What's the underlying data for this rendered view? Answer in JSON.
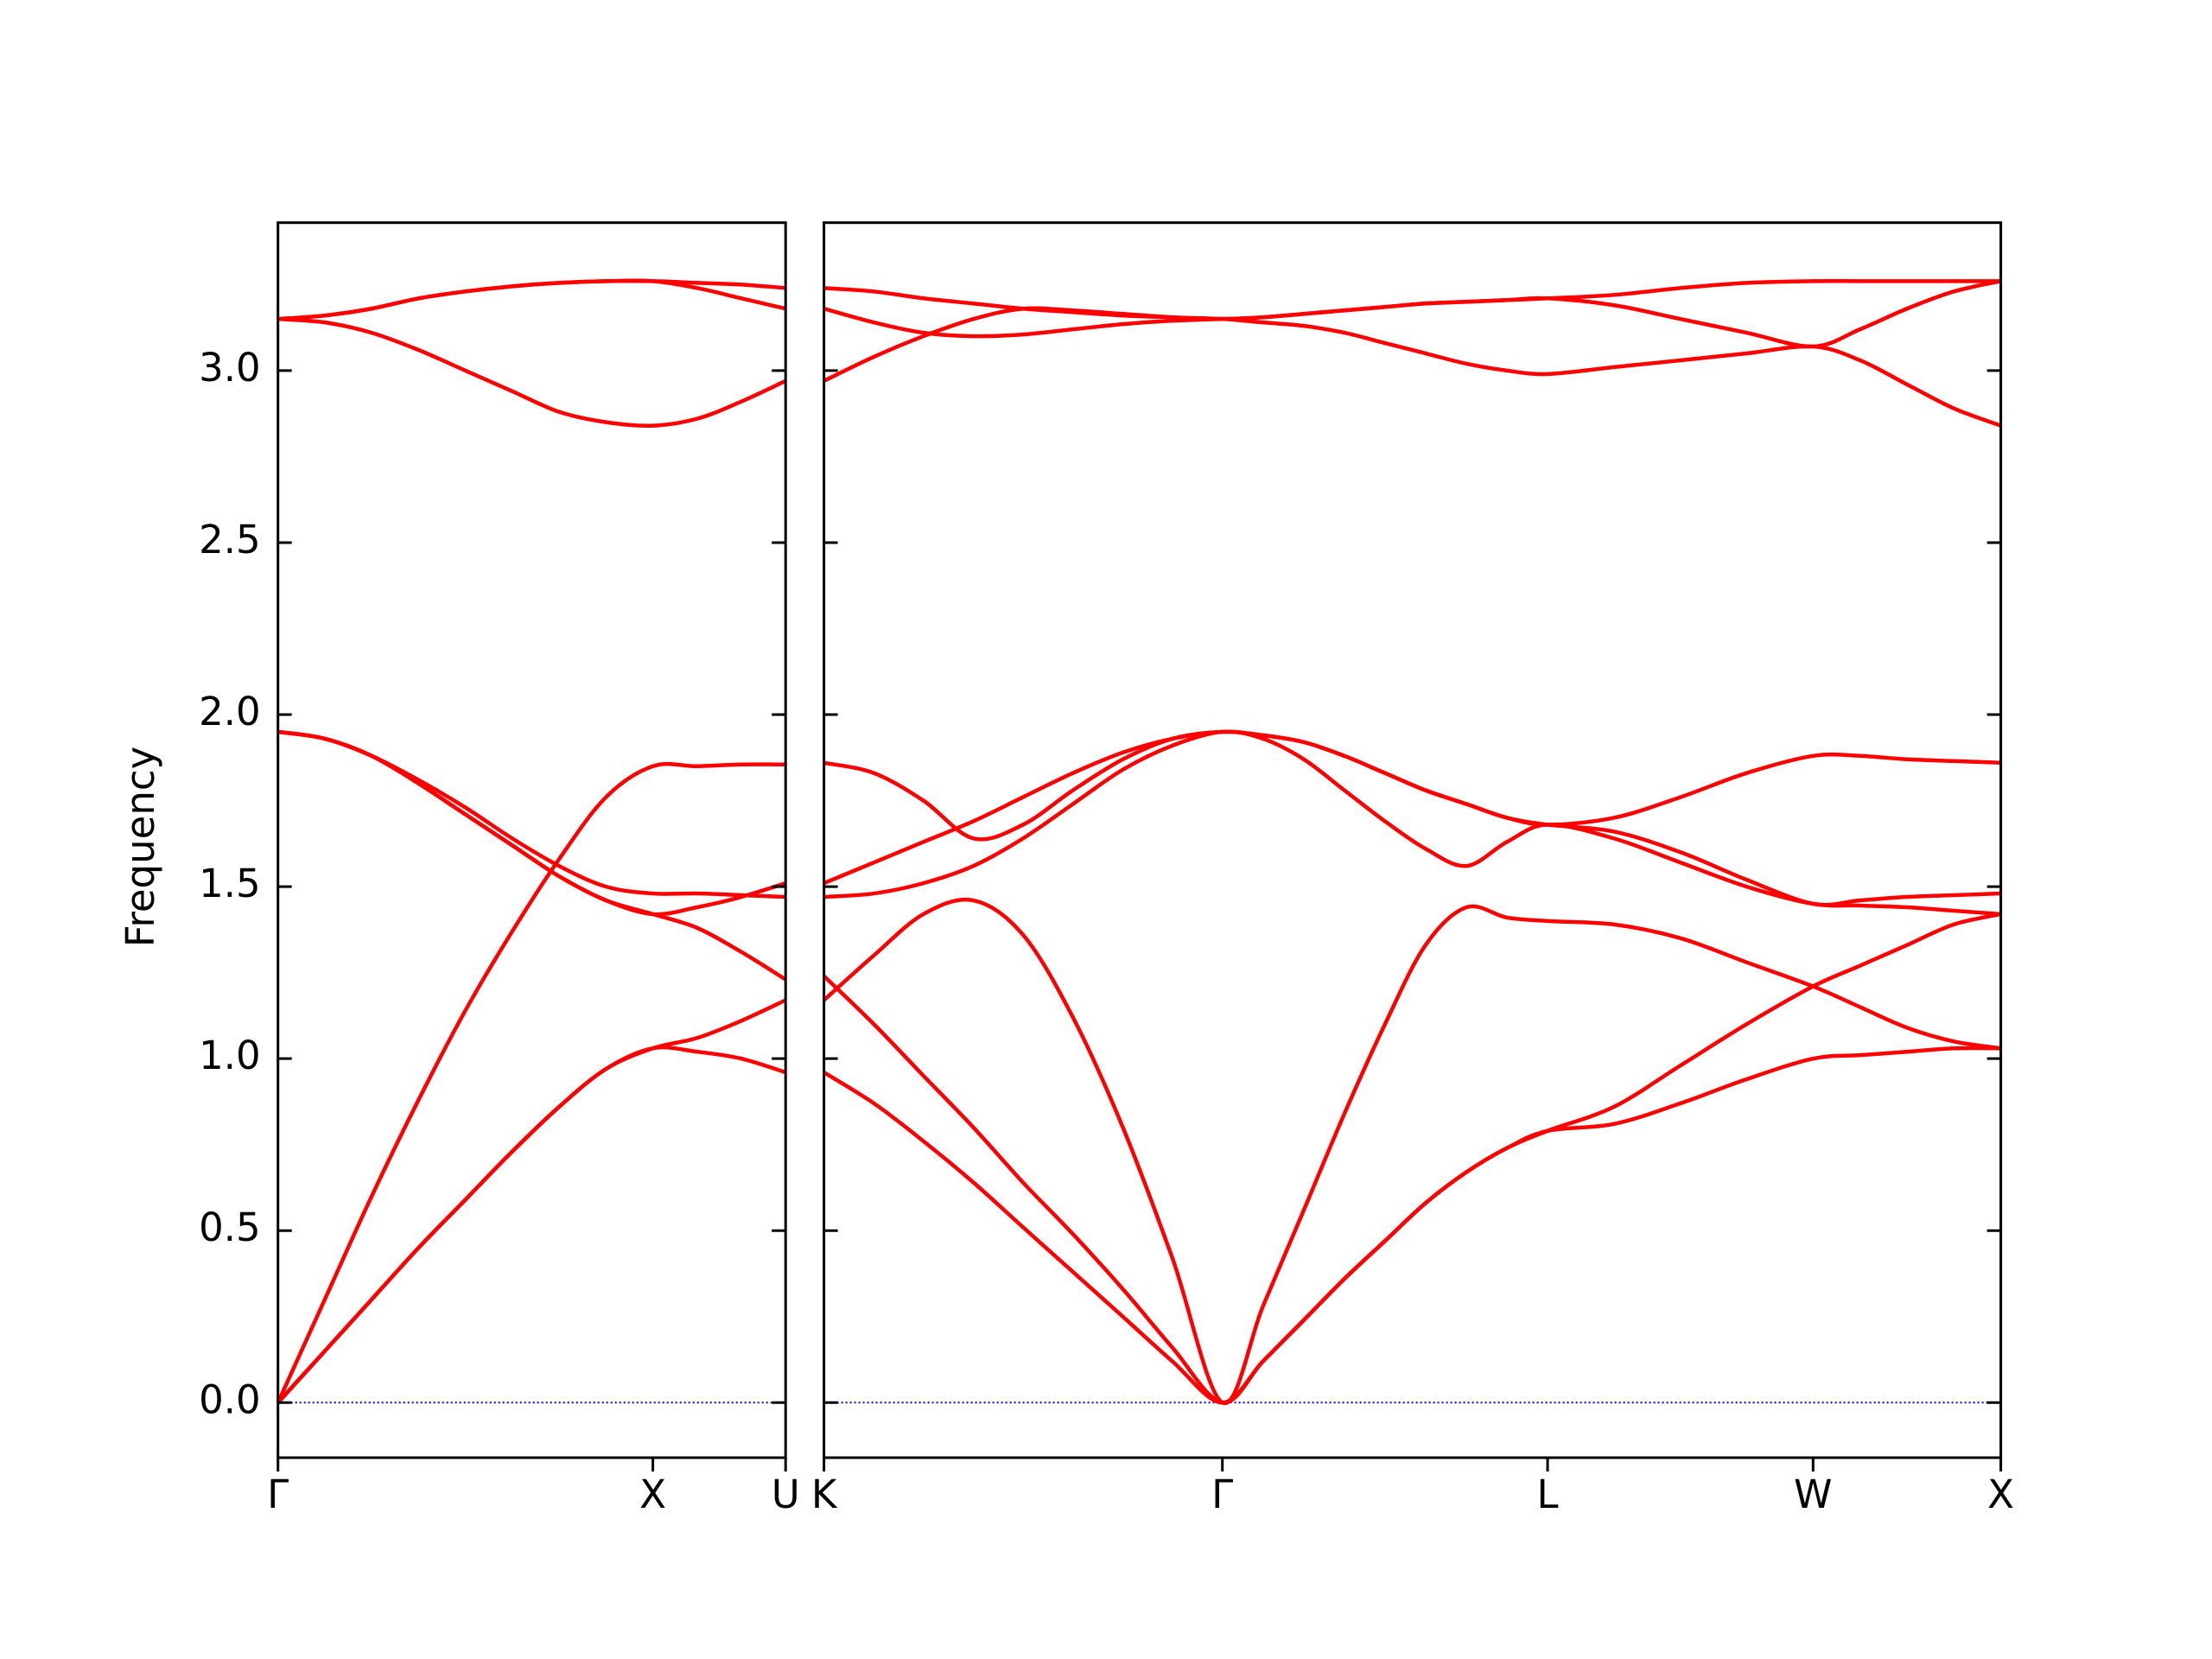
{
  "chart_data": [
    {
      "type": "line",
      "ylabel": "Frequency",
      "color": "#ff0000",
      "xlim": [
        0,
        1.354
      ],
      "ylim": [
        -0.16,
        3.43
      ],
      "xticks": [
        {
          "value": 0,
          "label": "Γ"
        },
        {
          "value": 1.0,
          "label": "X"
        },
        {
          "value": 1.354,
          "label": "U"
        }
      ],
      "yticks": [
        {
          "value": 0,
          "label": "0.0"
        },
        {
          "value": 0.5,
          "label": "0.5"
        },
        {
          "value": 1,
          "label": "1.0"
        },
        {
          "value": 1.5,
          "label": "1.5"
        },
        {
          "value": 2,
          "label": "2.0"
        },
        {
          "value": 2.5,
          "label": "2.5"
        },
        {
          "value": 3,
          "label": "3.0"
        }
      ],
      "x": [
        0,
        0.125,
        0.25,
        0.375,
        0.5,
        0.625,
        0.75,
        0.875,
        1.0,
        1.118,
        1.236,
        1.354
      ],
      "series": [
        {
          "values": [
            0,
            0.15,
            0.3,
            0.45,
            0.59,
            0.73,
            0.86,
            0.97,
            1.03,
            1.02,
            1.0,
            0.96
          ]
        },
        {
          "values": [
            0,
            0.15,
            0.3,
            0.45,
            0.59,
            0.73,
            0.86,
            0.97,
            1.03,
            1.06,
            1.11,
            1.17
          ]
        },
        {
          "values": [
            0,
            0.3,
            0.6,
            0.88,
            1.14,
            1.37,
            1.58,
            1.76,
            1.85,
            1.85,
            1.855,
            1.855
          ]
        },
        {
          "values": [
            1.95,
            1.93,
            1.88,
            1.8,
            1.71,
            1.62,
            1.53,
            1.46,
            1.42,
            1.38,
            1.31,
            1.23
          ]
        },
        {
          "values": [
            1.95,
            1.93,
            1.88,
            1.8,
            1.71,
            1.62,
            1.53,
            1.46,
            1.42,
            1.44,
            1.47,
            1.51
          ]
        },
        {
          "values": [
            1.95,
            1.93,
            1.88,
            1.81,
            1.73,
            1.64,
            1.56,
            1.5,
            1.48,
            1.48,
            1.475,
            1.47
          ]
        },
        {
          "values": [
            3.15,
            3.14,
            3.11,
            3.06,
            3.0,
            2.94,
            2.88,
            2.85,
            2.84,
            2.86,
            2.91,
            2.97
          ]
        },
        {
          "values": [
            3.15,
            3.16,
            3.18,
            3.21,
            3.23,
            3.245,
            3.255,
            3.26,
            3.26,
            3.24,
            3.21,
            3.18
          ]
        },
        {
          "values": [
            3.15,
            3.16,
            3.18,
            3.21,
            3.23,
            3.245,
            3.255,
            3.26,
            3.26,
            3.255,
            3.25,
            3.24
          ]
        }
      ]
    },
    {
      "type": "line",
      "color": "#ff0000",
      "xlim": [
        0,
        3.134
      ],
      "ylim": [
        -0.16,
        3.43
      ],
      "xticks": [
        {
          "value": 0,
          "label": "K"
        },
        {
          "value": 1.061,
          "label": "Γ"
        },
        {
          "value": 1.927,
          "label": "L"
        },
        {
          "value": 2.634,
          "label": "W"
        },
        {
          "value": 3.134,
          "label": "X"
        }
      ],
      "yticks": [
        0,
        0.5,
        1,
        1.5,
        2,
        2.5,
        3
      ],
      "x": [
        0,
        0.133,
        0.265,
        0.398,
        0.53,
        0.663,
        0.796,
        0.928,
        1.061,
        1.169,
        1.278,
        1.386,
        1.494,
        1.602,
        1.711,
        1.819,
        1.927,
        2.104,
        2.281,
        2.457,
        2.634,
        2.759,
        2.884,
        3.009,
        3.134
      ],
      "series": [
        {
          "values": [
            0.96,
            0.87,
            0.76,
            0.64,
            0.51,
            0.38,
            0.25,
            0.12,
            0,
            0.12,
            0.24,
            0.36,
            0.47,
            0.58,
            0.67,
            0.74,
            0.79,
            0.81,
            0.87,
            0.94,
            1.0,
            1.01,
            1.02,
            1.03,
            1.03
          ]
        },
        {
          "values": [
            1.24,
            1.1,
            0.95,
            0.8,
            0.64,
            0.49,
            0.33,
            0.16,
            0,
            0.12,
            0.24,
            0.36,
            0.47,
            0.58,
            0.67,
            0.74,
            0.79,
            0.86,
            0.98,
            1.1,
            1.21,
            1.27,
            1.33,
            1.39,
            1.42
          ]
        },
        {
          "values": [
            1.17,
            1.3,
            1.42,
            1.46,
            1.36,
            1.12,
            0.8,
            0.42,
            0,
            0.28,
            0.56,
            0.84,
            1.1,
            1.33,
            1.44,
            1.41,
            1.4,
            1.39,
            1.35,
            1.28,
            1.21,
            1.15,
            1.09,
            1.05,
            1.03
          ]
        },
        {
          "values": [
            1.86,
            1.83,
            1.75,
            1.64,
            1.68,
            1.78,
            1.87,
            1.93,
            1.95,
            1.94,
            1.92,
            1.88,
            1.83,
            1.78,
            1.74,
            1.7,
            1.68,
            1.7,
            1.76,
            1.83,
            1.88,
            1.88,
            1.87,
            1.865,
            1.86
          ]
        },
        {
          "values": [
            1.51,
            1.57,
            1.63,
            1.69,
            1.76,
            1.83,
            1.89,
            1.93,
            1.95,
            1.94,
            1.92,
            1.88,
            1.83,
            1.78,
            1.74,
            1.7,
            1.68,
            1.66,
            1.6,
            1.52,
            1.45,
            1.46,
            1.47,
            1.475,
            1.48
          ]
        },
        {
          "values": [
            1.47,
            1.48,
            1.51,
            1.56,
            1.64,
            1.74,
            1.84,
            1.91,
            1.95,
            1.93,
            1.87,
            1.78,
            1.69,
            1.61,
            1.56,
            1.63,
            1.68,
            1.64,
            1.57,
            1.5,
            1.45,
            1.445,
            1.44,
            1.43,
            1.42
          ]
        },
        {
          "values": [
            2.97,
            3.04,
            3.1,
            3.15,
            3.18,
            3.175,
            3.165,
            3.155,
            3.15,
            3.14,
            3.13,
            3.11,
            3.08,
            3.05,
            3.02,
            3.0,
            2.99,
            3.01,
            3.03,
            3.05,
            3.07,
            3.03,
            2.96,
            2.89,
            2.84
          ]
        },
        {
          "values": [
            3.18,
            3.14,
            3.11,
            3.1,
            3.105,
            3.12,
            3.135,
            3.145,
            3.15,
            3.155,
            3.165,
            3.175,
            3.185,
            3.195,
            3.2,
            3.205,
            3.21,
            3.19,
            3.15,
            3.11,
            3.07,
            3.12,
            3.18,
            3.23,
            3.26
          ]
        },
        {
          "values": [
            3.24,
            3.23,
            3.21,
            3.195,
            3.18,
            3.17,
            3.16,
            3.155,
            3.15,
            3.155,
            3.165,
            3.175,
            3.185,
            3.195,
            3.2,
            3.205,
            3.21,
            3.22,
            3.24,
            3.255,
            3.26,
            3.26,
            3.26,
            3.26,
            3.26
          ]
        }
      ]
    }
  ]
}
